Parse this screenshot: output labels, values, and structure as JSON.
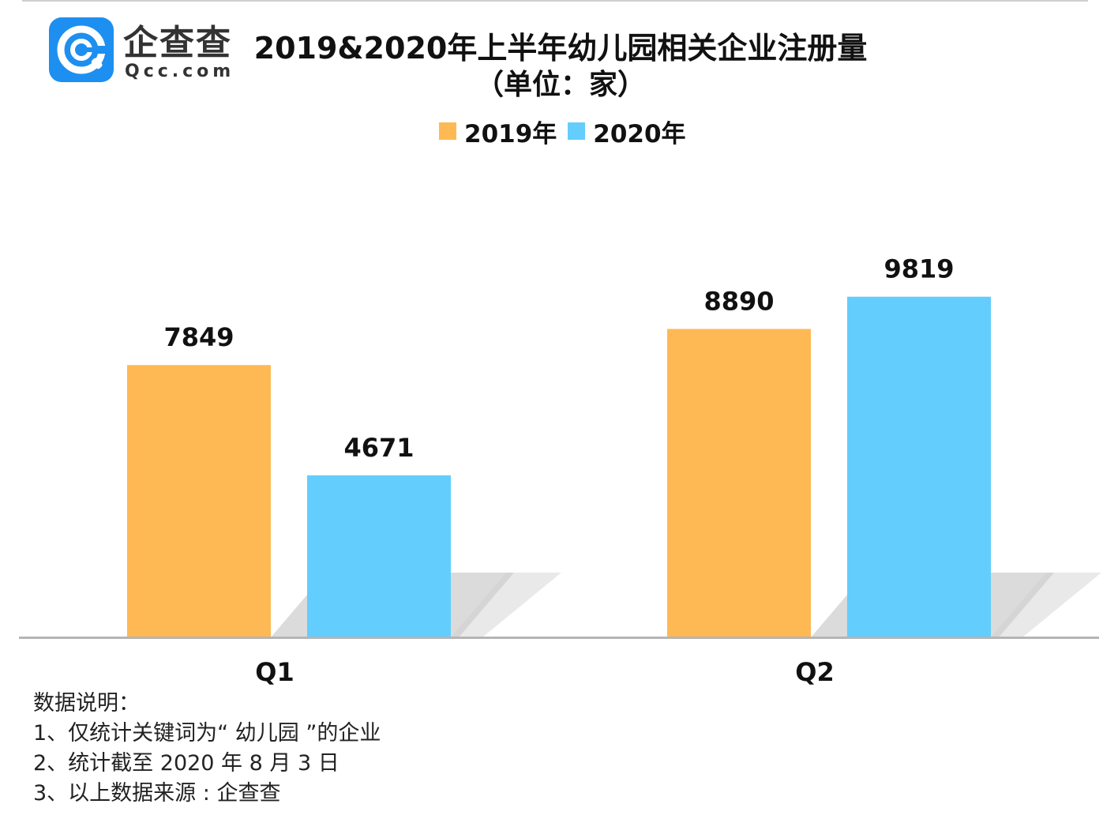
{
  "logo": {
    "cn_text": "企查查",
    "en_text": "Qcc.com",
    "brand_color": "#1d8ff0",
    "icon": "qcc-logo-icon"
  },
  "header": {
    "title": "2019&2020年上半年幼儿园相关企业注册量",
    "subtitle": "（单位：家）"
  },
  "colors": {
    "series_2019": "#ffb954",
    "series_2020": "#63cdfd",
    "axis": "#b5b5b5",
    "shadow": "#cfcfcf"
  },
  "chart_data": {
    "type": "bar",
    "title": "2019&2020年上半年幼儿园相关企业注册量",
    "subtitle": "（单位：家）",
    "categories": [
      "Q1",
      "Q2"
    ],
    "series": [
      {
        "name": "2019年",
        "values": [
          7849,
          8890
        ]
      },
      {
        "name": "2020年",
        "values": [
          4671,
          9819
        ]
      }
    ],
    "ylim": [
      0,
      10700
    ],
    "grid": false,
    "legend_position": "top-center",
    "data_labels": true
  },
  "notes": {
    "heading": "数据说明：",
    "items": [
      "1、仅统计关键词为“ 幼儿园 ”的企业",
      "2、统计截至 2020 年 8 月 3 日",
      "3、以上数据来源 : 企查查"
    ]
  }
}
